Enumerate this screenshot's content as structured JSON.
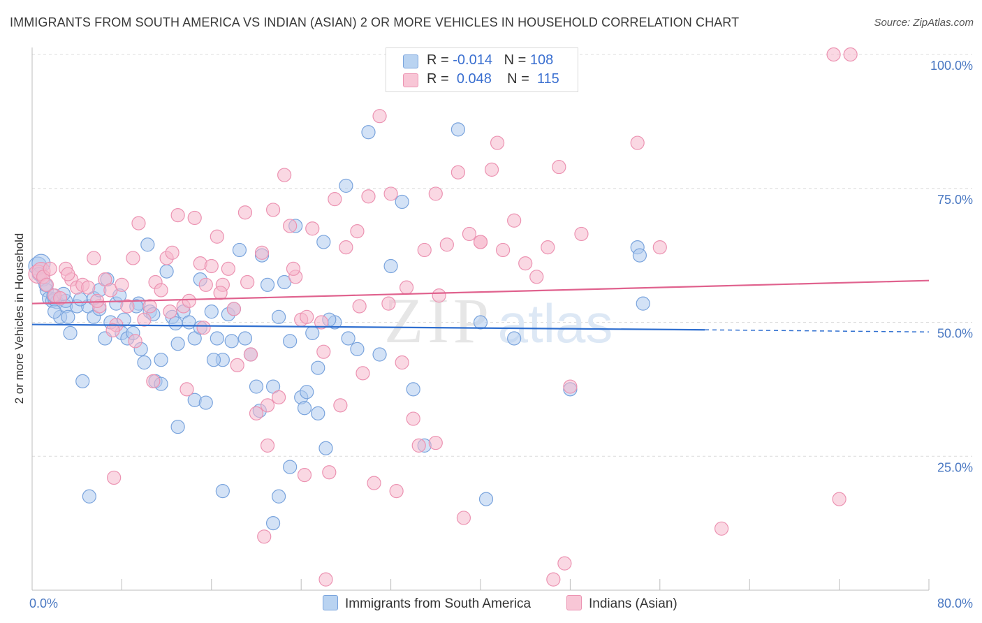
{
  "title": "IMMIGRANTS FROM SOUTH AMERICA VS INDIAN (ASIAN) 2 OR MORE VEHICLES IN HOUSEHOLD CORRELATION CHART",
  "source": "Source: ZipAtlas.com",
  "watermark": {
    "zip": "ZIP",
    "atlas": "atlas"
  },
  "legend": {
    "series1": {
      "r_label": "R = ",
      "r_value": "-0.014",
      "n_label": "N = ",
      "n_value": "108"
    },
    "series2": {
      "r_label": "R = ",
      "r_value": "0.048",
      "n_label": "N = ",
      "n_value": "115"
    }
  },
  "bottom_legend": {
    "series1": "Immigrants from South America",
    "series2": "Indians (Asian)"
  },
  "colors": {
    "blue_fill": "#aecbee",
    "blue_stroke": "#7aa4dd",
    "blue_line": "#2f6fd0",
    "pink_fill": "#f5b8cc",
    "pink_stroke": "#ec93b2",
    "pink_line": "#e0628e",
    "tick_label": "#4a78c2",
    "grid": "#dcdcdc"
  },
  "chart_data": {
    "type": "scatter",
    "xlabel": "",
    "ylabel": "2 or more Vehicles in Household",
    "xlim": [
      0,
      80
    ],
    "ylim": [
      0,
      100
    ],
    "x_tick_labels": [
      "0.0%",
      "80.0%"
    ],
    "y_tick_labels": [
      "25.0%",
      "50.0%",
      "75.0%",
      "100.0%"
    ],
    "y_ticks": [
      25,
      50,
      75,
      100
    ],
    "grid": true,
    "series": [
      {
        "name": "Immigrants from South America",
        "r": -0.014,
        "n": 108,
        "trend": {
          "x": [
            0,
            60
          ],
          "y": [
            49.6,
            48.6
          ],
          "dashed_to": [
            80,
            48.2
          ]
        },
        "points": [
          [
            0.5,
            60.5
          ],
          [
            0.8,
            61.0
          ],
          [
            1.0,
            58.0
          ],
          [
            1.3,
            56.0
          ],
          [
            1.5,
            54.5
          ],
          [
            1.8,
            54.0
          ],
          [
            2.0,
            54.3
          ],
          [
            2.2,
            53.8
          ],
          [
            2.5,
            51.0
          ],
          [
            3.0,
            53.0
          ],
          [
            3.2,
            51.0
          ],
          [
            3.4,
            48.0
          ],
          [
            4.0,
            53.0
          ],
          [
            4.5,
            39.0
          ],
          [
            5.0,
            53.0
          ],
          [
            5.5,
            51.0
          ],
          [
            6.0,
            52.5
          ],
          [
            6.5,
            47.0
          ],
          [
            7.0,
            50.0
          ],
          [
            7.5,
            53.5
          ],
          [
            8.0,
            48.0
          ],
          [
            8.5,
            47.0
          ],
          [
            9.0,
            48.0
          ],
          [
            9.5,
            53.5
          ],
          [
            10.0,
            42.5
          ],
          [
            10.5,
            52.0
          ],
          [
            11.0,
            39.0
          ],
          [
            11.5,
            43.0
          ],
          [
            12.0,
            59.5
          ],
          [
            12.5,
            51.0
          ],
          [
            13.0,
            46.0
          ],
          [
            13.5,
            52.0
          ],
          [
            14.0,
            50.0
          ],
          [
            14.5,
            47.0
          ],
          [
            15.0,
            58.0
          ],
          [
            16.0,
            52.0
          ],
          [
            16.5,
            47.0
          ],
          [
            17.0,
            43.0
          ],
          [
            17.5,
            51.5
          ],
          [
            18.0,
            52.5
          ],
          [
            18.5,
            63.5
          ],
          [
            19.0,
            47.0
          ],
          [
            19.5,
            44.0
          ],
          [
            20.0,
            38.0
          ],
          [
            20.5,
            62.5
          ],
          [
            21.0,
            57.0
          ],
          [
            21.5,
            38.0
          ],
          [
            22.0,
            51.0
          ],
          [
            22.5,
            57.5
          ],
          [
            23.0,
            46.5
          ],
          [
            23.5,
            68.0
          ],
          [
            24.0,
            36.0
          ],
          [
            24.5,
            37.0
          ],
          [
            25.0,
            48.0
          ],
          [
            25.5,
            41.5
          ],
          [
            26.0,
            65.0
          ],
          [
            27.0,
            50.0
          ],
          [
            28.0,
            75.5
          ],
          [
            29.0,
            45.0
          ],
          [
            30.0,
            85.5
          ],
          [
            31.0,
            44.0
          ],
          [
            32.0,
            60.5
          ],
          [
            33.0,
            72.5
          ],
          [
            34.0,
            37.5
          ],
          [
            35.0,
            27.0
          ],
          [
            38.0,
            86.0
          ],
          [
            40.0,
            50.0
          ],
          [
            40.5,
            17.0
          ],
          [
            43.0,
            47.0
          ],
          [
            48.0,
            37.5
          ],
          [
            11.5,
            38.5
          ],
          [
            3.0,
            54.0
          ],
          [
            5.5,
            54.5
          ],
          [
            7.8,
            55.0
          ],
          [
            9.3,
            53.0
          ],
          [
            10.3,
            64.5
          ],
          [
            6.7,
            58.0
          ],
          [
            14.5,
            35.5
          ],
          [
            15.5,
            35.0
          ],
          [
            13.0,
            30.5
          ],
          [
            16.2,
            43.0
          ],
          [
            20.3,
            33.5
          ],
          [
            23.0,
            23.0
          ],
          [
            24.3,
            34.0
          ],
          [
            25.5,
            33.0
          ],
          [
            26.2,
            26.5
          ],
          [
            17.0,
            18.5
          ],
          [
            22.0,
            17.5
          ],
          [
            21.5,
            12.5
          ],
          [
            5.1,
            17.5
          ],
          [
            1.2,
            57.0
          ],
          [
            1.9,
            55.0
          ],
          [
            2.8,
            55.3
          ],
          [
            4.3,
            54.3
          ],
          [
            6.0,
            56.0
          ],
          [
            8.2,
            50.5
          ],
          [
            10.8,
            51.5
          ],
          [
            12.8,
            49.8
          ],
          [
            15.0,
            49.0
          ],
          [
            17.8,
            46.5
          ],
          [
            26.5,
            50.5
          ],
          [
            28.2,
            47.0
          ],
          [
            9.7,
            45.0
          ],
          [
            2.0,
            52.0
          ],
          [
            0.6,
            59.0
          ],
          [
            54.5,
            53.5
          ],
          [
            54.0,
            64.0
          ],
          [
            54.2,
            62.5
          ]
        ]
      },
      {
        "name": "Indians (Asian)",
        "r": 0.048,
        "n": 115,
        "trend": {
          "x": [
            0,
            80
          ],
          "y": [
            53.5,
            57.8
          ]
        },
        "points": [
          [
            0.5,
            59.0
          ],
          [
            0.8,
            59.5
          ],
          [
            1.0,
            58.5
          ],
          [
            1.3,
            57.0
          ],
          [
            1.6,
            60.0
          ],
          [
            2.0,
            55.0
          ],
          [
            2.5,
            54.5
          ],
          [
            3.0,
            60.0
          ],
          [
            3.5,
            58.0
          ],
          [
            4.0,
            56.5
          ],
          [
            4.5,
            57.0
          ],
          [
            5.0,
            56.5
          ],
          [
            5.5,
            62.0
          ],
          [
            6.0,
            53.0
          ],
          [
            6.5,
            58.0
          ],
          [
            7.0,
            56.0
          ],
          [
            7.5,
            49.5
          ],
          [
            8.0,
            57.0
          ],
          [
            8.5,
            53.0
          ],
          [
            9.0,
            62.0
          ],
          [
            9.5,
            68.5
          ],
          [
            10.0,
            50.5
          ],
          [
            10.5,
            53.0
          ],
          [
            11.0,
            57.5
          ],
          [
            11.5,
            56.0
          ],
          [
            12.0,
            62.0
          ],
          [
            12.5,
            63.0
          ],
          [
            13.0,
            70.0
          ],
          [
            13.5,
            53.0
          ],
          [
            14.0,
            54.0
          ],
          [
            14.5,
            69.5
          ],
          [
            15.0,
            61.0
          ],
          [
            15.5,
            57.0
          ],
          [
            16.0,
            60.5
          ],
          [
            16.5,
            66.0
          ],
          [
            17.0,
            57.0
          ],
          [
            17.5,
            60.0
          ],
          [
            18.0,
            52.5
          ],
          [
            19.0,
            70.5
          ],
          [
            19.5,
            44.0
          ],
          [
            20.0,
            33.0
          ],
          [
            20.5,
            63.0
          ],
          [
            21.0,
            34.5
          ],
          [
            21.5,
            71.0
          ],
          [
            22.0,
            36.0
          ],
          [
            22.5,
            77.5
          ],
          [
            23.0,
            68.0
          ],
          [
            23.5,
            58.5
          ],
          [
            24.0,
            50.5
          ],
          [
            24.5,
            51.0
          ],
          [
            25.0,
            67.5
          ],
          [
            26.0,
            44.5
          ],
          [
            27.0,
            73.0
          ],
          [
            28.0,
            64.0
          ],
          [
            29.0,
            67.0
          ],
          [
            30.0,
            73.5
          ],
          [
            31.0,
            88.5
          ],
          [
            32.0,
            74.0
          ],
          [
            33.0,
            42.5
          ],
          [
            34.0,
            32.0
          ],
          [
            35.0,
            63.5
          ],
          [
            36.0,
            74.0
          ],
          [
            37.0,
            64.5
          ],
          [
            38.0,
            78.0
          ],
          [
            39.0,
            66.5
          ],
          [
            40.0,
            65.0
          ],
          [
            41.0,
            78.5
          ],
          [
            42.0,
            63.5
          ],
          [
            43.0,
            69.0
          ],
          [
            44.0,
            61.0
          ],
          [
            45.0,
            58.5
          ],
          [
            46.0,
            64.0
          ],
          [
            47.0,
            79.0
          ],
          [
            48.0,
            38.0
          ],
          [
            49.0,
            66.5
          ],
          [
            54.0,
            83.5
          ],
          [
            56.0,
            64.0
          ],
          [
            71.5,
            100.0
          ],
          [
            73.0,
            100.0
          ],
          [
            72.0,
            17.0
          ],
          [
            3.2,
            59.0
          ],
          [
            5.8,
            54.0
          ],
          [
            7.2,
            48.5
          ],
          [
            10.8,
            39.0
          ],
          [
            12.3,
            52.0
          ],
          [
            15.3,
            49.0
          ],
          [
            18.3,
            42.0
          ],
          [
            21.0,
            27.0
          ],
          [
            24.3,
            21.5
          ],
          [
            26.5,
            22.0
          ],
          [
            27.5,
            34.5
          ],
          [
            29.5,
            40.5
          ],
          [
            30.5,
            20.0
          ],
          [
            32.5,
            18.5
          ],
          [
            34.5,
            27.0
          ],
          [
            36.0,
            27.5
          ],
          [
            38.5,
            13.5
          ],
          [
            40.0,
            65.0
          ],
          [
            41.5,
            83.5
          ],
          [
            46.5,
            2.0
          ],
          [
            47.5,
            5.0
          ],
          [
            61.5,
            11.5
          ],
          [
            20.7,
            10.0
          ],
          [
            26.2,
            2.0
          ],
          [
            7.3,
            21.0
          ],
          [
            9.2,
            46.5
          ],
          [
            13.8,
            37.5
          ],
          [
            16.8,
            55.5
          ],
          [
            19.2,
            57.5
          ],
          [
            23.3,
            60.0
          ],
          [
            25.8,
            50.0
          ],
          [
            29.2,
            53.0
          ],
          [
            31.8,
            53.5
          ],
          [
            36.3,
            55.0
          ],
          [
            33.4,
            56.5
          ]
        ]
      }
    ]
  }
}
